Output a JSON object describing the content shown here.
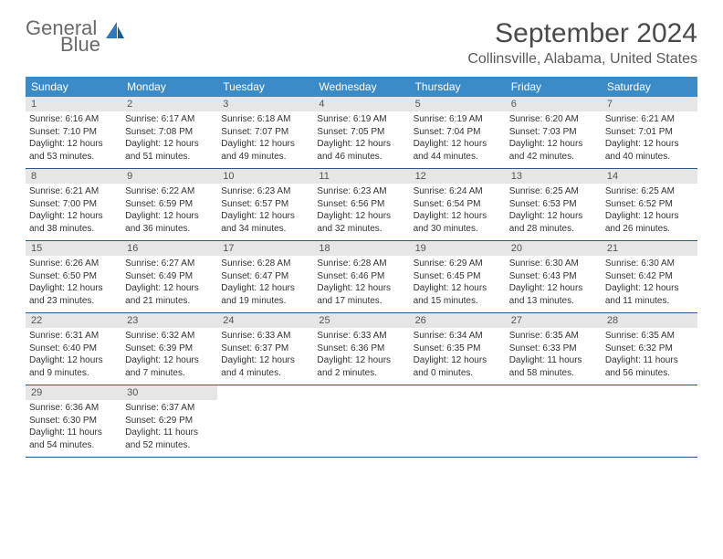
{
  "logo": {
    "line1": "General",
    "line2": "Blue"
  },
  "title": "September 2024",
  "location": "Collinsville, Alabama, United States",
  "colors": {
    "header_bg": "#3b8bc9",
    "header_text": "#ffffff",
    "daynum_bg": "#e6e6e6",
    "border": "#2b5a8a",
    "logo_gray": "#6a6a6a",
    "logo_blue": "#2b7ac0"
  },
  "day_names": [
    "Sunday",
    "Monday",
    "Tuesday",
    "Wednesday",
    "Thursday",
    "Friday",
    "Saturday"
  ],
  "weeks": [
    [
      {
        "n": "1",
        "sunrise": "Sunrise: 6:16 AM",
        "sunset": "Sunset: 7:10 PM",
        "day1": "Daylight: 12 hours",
        "day2": "and 53 minutes."
      },
      {
        "n": "2",
        "sunrise": "Sunrise: 6:17 AM",
        "sunset": "Sunset: 7:08 PM",
        "day1": "Daylight: 12 hours",
        "day2": "and 51 minutes."
      },
      {
        "n": "3",
        "sunrise": "Sunrise: 6:18 AM",
        "sunset": "Sunset: 7:07 PM",
        "day1": "Daylight: 12 hours",
        "day2": "and 49 minutes."
      },
      {
        "n": "4",
        "sunrise": "Sunrise: 6:19 AM",
        "sunset": "Sunset: 7:05 PM",
        "day1": "Daylight: 12 hours",
        "day2": "and 46 minutes."
      },
      {
        "n": "5",
        "sunrise": "Sunrise: 6:19 AM",
        "sunset": "Sunset: 7:04 PM",
        "day1": "Daylight: 12 hours",
        "day2": "and 44 minutes."
      },
      {
        "n": "6",
        "sunrise": "Sunrise: 6:20 AM",
        "sunset": "Sunset: 7:03 PM",
        "day1": "Daylight: 12 hours",
        "day2": "and 42 minutes."
      },
      {
        "n": "7",
        "sunrise": "Sunrise: 6:21 AM",
        "sunset": "Sunset: 7:01 PM",
        "day1": "Daylight: 12 hours",
        "day2": "and 40 minutes."
      }
    ],
    [
      {
        "n": "8",
        "sunrise": "Sunrise: 6:21 AM",
        "sunset": "Sunset: 7:00 PM",
        "day1": "Daylight: 12 hours",
        "day2": "and 38 minutes."
      },
      {
        "n": "9",
        "sunrise": "Sunrise: 6:22 AM",
        "sunset": "Sunset: 6:59 PM",
        "day1": "Daylight: 12 hours",
        "day2": "and 36 minutes."
      },
      {
        "n": "10",
        "sunrise": "Sunrise: 6:23 AM",
        "sunset": "Sunset: 6:57 PM",
        "day1": "Daylight: 12 hours",
        "day2": "and 34 minutes."
      },
      {
        "n": "11",
        "sunrise": "Sunrise: 6:23 AM",
        "sunset": "Sunset: 6:56 PM",
        "day1": "Daylight: 12 hours",
        "day2": "and 32 minutes."
      },
      {
        "n": "12",
        "sunrise": "Sunrise: 6:24 AM",
        "sunset": "Sunset: 6:54 PM",
        "day1": "Daylight: 12 hours",
        "day2": "and 30 minutes."
      },
      {
        "n": "13",
        "sunrise": "Sunrise: 6:25 AM",
        "sunset": "Sunset: 6:53 PM",
        "day1": "Daylight: 12 hours",
        "day2": "and 28 minutes."
      },
      {
        "n": "14",
        "sunrise": "Sunrise: 6:25 AM",
        "sunset": "Sunset: 6:52 PM",
        "day1": "Daylight: 12 hours",
        "day2": "and 26 minutes."
      }
    ],
    [
      {
        "n": "15",
        "sunrise": "Sunrise: 6:26 AM",
        "sunset": "Sunset: 6:50 PM",
        "day1": "Daylight: 12 hours",
        "day2": "and 23 minutes."
      },
      {
        "n": "16",
        "sunrise": "Sunrise: 6:27 AM",
        "sunset": "Sunset: 6:49 PM",
        "day1": "Daylight: 12 hours",
        "day2": "and 21 minutes."
      },
      {
        "n": "17",
        "sunrise": "Sunrise: 6:28 AM",
        "sunset": "Sunset: 6:47 PM",
        "day1": "Daylight: 12 hours",
        "day2": "and 19 minutes."
      },
      {
        "n": "18",
        "sunrise": "Sunrise: 6:28 AM",
        "sunset": "Sunset: 6:46 PM",
        "day1": "Daylight: 12 hours",
        "day2": "and 17 minutes."
      },
      {
        "n": "19",
        "sunrise": "Sunrise: 6:29 AM",
        "sunset": "Sunset: 6:45 PM",
        "day1": "Daylight: 12 hours",
        "day2": "and 15 minutes."
      },
      {
        "n": "20",
        "sunrise": "Sunrise: 6:30 AM",
        "sunset": "Sunset: 6:43 PM",
        "day1": "Daylight: 12 hours",
        "day2": "and 13 minutes."
      },
      {
        "n": "21",
        "sunrise": "Sunrise: 6:30 AM",
        "sunset": "Sunset: 6:42 PM",
        "day1": "Daylight: 12 hours",
        "day2": "and 11 minutes."
      }
    ],
    [
      {
        "n": "22",
        "sunrise": "Sunrise: 6:31 AM",
        "sunset": "Sunset: 6:40 PM",
        "day1": "Daylight: 12 hours",
        "day2": "and 9 minutes."
      },
      {
        "n": "23",
        "sunrise": "Sunrise: 6:32 AM",
        "sunset": "Sunset: 6:39 PM",
        "day1": "Daylight: 12 hours",
        "day2": "and 7 minutes."
      },
      {
        "n": "24",
        "sunrise": "Sunrise: 6:33 AM",
        "sunset": "Sunset: 6:37 PM",
        "day1": "Daylight: 12 hours",
        "day2": "and 4 minutes."
      },
      {
        "n": "25",
        "sunrise": "Sunrise: 6:33 AM",
        "sunset": "Sunset: 6:36 PM",
        "day1": "Daylight: 12 hours",
        "day2": "and 2 minutes."
      },
      {
        "n": "26",
        "sunrise": "Sunrise: 6:34 AM",
        "sunset": "Sunset: 6:35 PM",
        "day1": "Daylight: 12 hours",
        "day2": "and 0 minutes."
      },
      {
        "n": "27",
        "sunrise": "Sunrise: 6:35 AM",
        "sunset": "Sunset: 6:33 PM",
        "day1": "Daylight: 11 hours",
        "day2": "and 58 minutes."
      },
      {
        "n": "28",
        "sunrise": "Sunrise: 6:35 AM",
        "sunset": "Sunset: 6:32 PM",
        "day1": "Daylight: 11 hours",
        "day2": "and 56 minutes."
      }
    ],
    [
      {
        "n": "29",
        "sunrise": "Sunrise: 6:36 AM",
        "sunset": "Sunset: 6:30 PM",
        "day1": "Daylight: 11 hours",
        "day2": "and 54 minutes."
      },
      {
        "n": "30",
        "sunrise": "Sunrise: 6:37 AM",
        "sunset": "Sunset: 6:29 PM",
        "day1": "Daylight: 11 hours",
        "day2": "and 52 minutes."
      },
      {
        "empty": true
      },
      {
        "empty": true
      },
      {
        "empty": true
      },
      {
        "empty": true
      },
      {
        "empty": true
      }
    ]
  ]
}
